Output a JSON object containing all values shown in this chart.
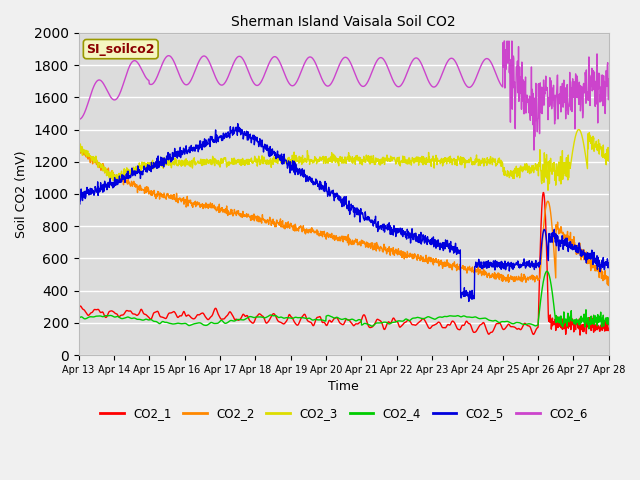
{
  "title": "Sherman Island Vaisala Soil CO2",
  "xlabel": "Time",
  "ylabel": "Soil CO2 (mV)",
  "ylim": [
    0,
    2000
  ],
  "yticks": [
    0,
    200,
    400,
    600,
    800,
    1000,
    1200,
    1400,
    1600,
    1800,
    2000
  ],
  "fig_bg": "#f0f0f0",
  "plot_bg": "#e0e0e0",
  "legend_label": "SI_soilco2",
  "series_colors": {
    "CO2_1": "#ff0000",
    "CO2_2": "#ff8800",
    "CO2_3": "#dddd00",
    "CO2_4": "#00cc00",
    "CO2_5": "#0000dd",
    "CO2_6": "#cc44cc"
  },
  "xtick_labels": [
    "Apr 13",
    "Apr 14",
    "Apr 15",
    "Apr 16",
    "Apr 17",
    "Apr 18",
    "Apr 19",
    "Apr 20",
    "Apr 21",
    "Apr 22",
    "Apr 23",
    "Apr 24",
    "Apr 25",
    "Apr 26",
    "Apr 27",
    "Apr 28"
  ]
}
